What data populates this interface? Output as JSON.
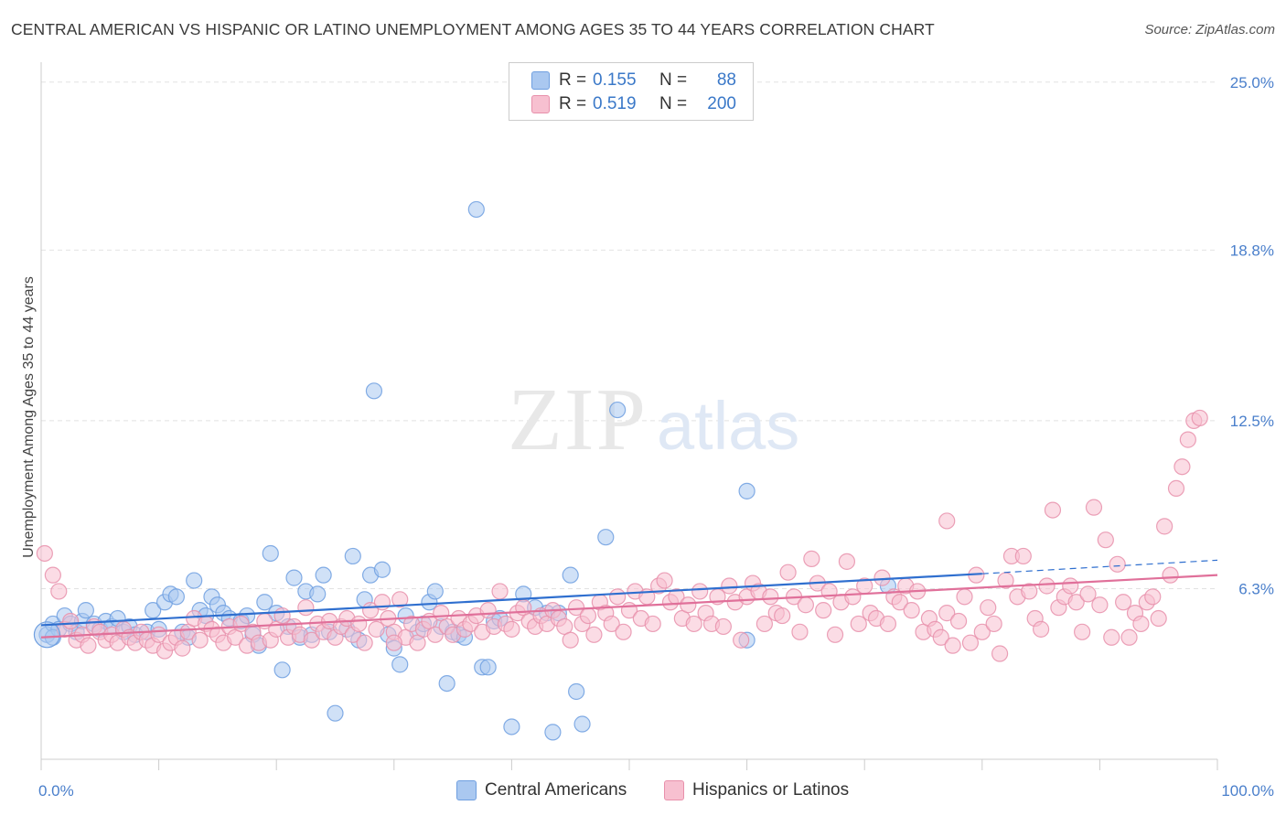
{
  "title": "CENTRAL AMERICAN VS HISPANIC OR LATINO UNEMPLOYMENT AMONG AGES 35 TO 44 YEARS CORRELATION CHART",
  "source": "Source: ZipAtlas.com",
  "watermark": {
    "zip": "ZIP",
    "atlas": "atlas"
  },
  "legend": {
    "rows": [
      {
        "r_label": "R =",
        "r_value": "0.155",
        "n_label": "N =",
        "n_value": "88",
        "color": "#aac8f0",
        "border": "#6f9fe0"
      },
      {
        "r_label": "R =",
        "r_value": "0.519",
        "n_label": "N =",
        "n_value": "200",
        "color": "#f7c0d0",
        "border": "#e890ab"
      }
    ]
  },
  "bottom_legend": [
    {
      "label": "Central Americans",
      "color": "#aac8f0",
      "border": "#6f9fe0"
    },
    {
      "label": "Hispanics or Latinos",
      "color": "#f7c0d0",
      "border": "#e890ab"
    }
  ],
  "chart_data": {
    "type": "scatter",
    "title": "CENTRAL AMERICAN VS HISPANIC OR LATINO UNEMPLOYMENT AMONG AGES 35 TO 44 YEARS CORRELATION CHART",
    "xlabel": "",
    "ylabel": "Unemployment Among Ages 35 to 44 years",
    "xlim": [
      0,
      100
    ],
    "ylim": [
      0,
      25.6
    ],
    "y_ticks": [
      {
        "value": 6.3,
        "label": "6.3%"
      },
      {
        "value": 12.5,
        "label": "12.5%"
      },
      {
        "value": 18.8,
        "label": "18.8%"
      },
      {
        "value": 25.0,
        "label": "25.0%"
      }
    ],
    "x_tick_labels": [
      {
        "value": 0,
        "label": "0.0%"
      },
      {
        "value": 100,
        "label": "100.0%"
      }
    ],
    "grid": true,
    "legend_position": "top-center",
    "series": [
      {
        "name": "Central Americans",
        "color": "#6f9fe0",
        "fill": "#aac8f0",
        "r": 0.155,
        "n": 88,
        "trend": {
          "x0": 0,
          "y0": 4.95,
          "x1": 80,
          "y1": 6.85,
          "dashed_to": 100,
          "dashed_y": 7.35
        },
        "points": [
          [
            0.5,
            4.6
          ],
          [
            1,
            5.0
          ],
          [
            1.5,
            4.8
          ],
          [
            2,
            5.3
          ],
          [
            2.5,
            5.0
          ],
          [
            3,
            4.7
          ],
          [
            3.5,
            5.1
          ],
          [
            3.8,
            5.5
          ],
          [
            4.5,
            5.0
          ],
          [
            5,
            4.8
          ],
          [
            5.5,
            5.1
          ],
          [
            6,
            4.9
          ],
          [
            6.5,
            5.2
          ],
          [
            7,
            4.7
          ],
          [
            7.5,
            4.9
          ],
          [
            8,
            4.6
          ],
          [
            9,
            4.7
          ],
          [
            9.5,
            5.5
          ],
          [
            10,
            4.8
          ],
          [
            10.5,
            5.8
          ],
          [
            11,
            6.1
          ],
          [
            11.5,
            6.0
          ],
          [
            12,
            4.7
          ],
          [
            12.5,
            4.5
          ],
          [
            13,
            6.6
          ],
          [
            13.5,
            5.5
          ],
          [
            14,
            5.3
          ],
          [
            14.5,
            6.0
          ],
          [
            15,
            5.7
          ],
          [
            15.5,
            5.4
          ],
          [
            16,
            5.2
          ],
          [
            17,
            5.1
          ],
          [
            17.5,
            5.3
          ],
          [
            18,
            4.6
          ],
          [
            18.5,
            4.2
          ],
          [
            19,
            5.8
          ],
          [
            19.5,
            7.6
          ],
          [
            20,
            5.4
          ],
          [
            20.5,
            3.3
          ],
          [
            21,
            4.9
          ],
          [
            21.5,
            6.7
          ],
          [
            22,
            4.5
          ],
          [
            22.5,
            6.2
          ],
          [
            23,
            4.6
          ],
          [
            23.5,
            6.1
          ],
          [
            24,
            6.8
          ],
          [
            24.5,
            4.7
          ],
          [
            25,
            1.7
          ],
          [
            26,
            4.8
          ],
          [
            26.5,
            7.5
          ],
          [
            27,
            4.4
          ],
          [
            27.5,
            5.9
          ],
          [
            28,
            6.8
          ],
          [
            28.3,
            13.6
          ],
          [
            29,
            7.0
          ],
          [
            29.5,
            4.6
          ],
          [
            30,
            4.1
          ],
          [
            30.5,
            3.5
          ],
          [
            31,
            5.3
          ],
          [
            32,
            4.7
          ],
          [
            32.5,
            5.0
          ],
          [
            33,
            5.8
          ],
          [
            33.5,
            6.2
          ],
          [
            34,
            4.9
          ],
          [
            34.5,
            2.8
          ],
          [
            35,
            4.7
          ],
          [
            35.5,
            4.6
          ],
          [
            36,
            4.5
          ],
          [
            37,
            20.3
          ],
          [
            37.5,
            3.4
          ],
          [
            38,
            3.4
          ],
          [
            38.5,
            5.1
          ],
          [
            39,
            5.2
          ],
          [
            40,
            1.2
          ],
          [
            41,
            6.1
          ],
          [
            42,
            5.6
          ],
          [
            43,
            5.4
          ],
          [
            43.5,
            1.0
          ],
          [
            44,
            5.4
          ],
          [
            45,
            6.8
          ],
          [
            45.5,
            2.5
          ],
          [
            46,
            1.3
          ],
          [
            48,
            8.2
          ],
          [
            49,
            12.9
          ],
          [
            60,
            4.4
          ],
          [
            60,
            9.9
          ],
          [
            72,
            6.4
          ],
          [
            1,
            4.5
          ]
        ]
      },
      {
        "name": "Hispanics or Latinos",
        "color": "#e890ab",
        "fill": "#f7c0d0",
        "r": 0.519,
        "n": 200,
        "trend": {
          "x0": 0,
          "y0": 4.5,
          "x1": 100,
          "y1": 6.8
        },
        "points": [
          [
            0.3,
            7.6
          ],
          [
            1,
            6.8
          ],
          [
            1.5,
            6.2
          ],
          [
            2,
            4.8
          ],
          [
            2.5,
            5.1
          ],
          [
            3,
            4.4
          ],
          [
            3.5,
            4.6
          ],
          [
            4,
            4.2
          ],
          [
            4.5,
            4.9
          ],
          [
            5,
            4.7
          ],
          [
            5.5,
            4.4
          ],
          [
            6,
            4.6
          ],
          [
            6.5,
            4.3
          ],
          [
            7,
            4.8
          ],
          [
            7.5,
            4.5
          ],
          [
            8,
            4.3
          ],
          [
            8.5,
            4.7
          ],
          [
            9,
            4.4
          ],
          [
            9.5,
            4.2
          ],
          [
            10,
            4.6
          ],
          [
            10.5,
            4.0
          ],
          [
            11,
            4.3
          ],
          [
            11.5,
            4.5
          ],
          [
            12,
            4.1
          ],
          [
            12.5,
            4.7
          ],
          [
            13,
            5.2
          ],
          [
            13.5,
            4.4
          ],
          [
            14,
            5.0
          ],
          [
            14.5,
            4.8
          ],
          [
            15,
            4.6
          ],
          [
            15.5,
            4.3
          ],
          [
            16,
            4.9
          ],
          [
            16.5,
            4.5
          ],
          [
            17,
            5.0
          ],
          [
            17.5,
            4.2
          ],
          [
            18,
            4.7
          ],
          [
            18.5,
            4.3
          ],
          [
            19,
            5.1
          ],
          [
            19.5,
            4.4
          ],
          [
            20,
            4.8
          ],
          [
            20.5,
            5.3
          ],
          [
            21,
            4.5
          ],
          [
            21.5,
            4.9
          ],
          [
            22,
            4.6
          ],
          [
            22.5,
            5.6
          ],
          [
            23,
            4.4
          ],
          [
            23.5,
            5.0
          ],
          [
            24,
            4.7
          ],
          [
            24.5,
            5.1
          ],
          [
            25,
            4.5
          ],
          [
            25.5,
            4.9
          ],
          [
            26,
            5.2
          ],
          [
            26.5,
            4.6
          ],
          [
            27,
            5.0
          ],
          [
            27.5,
            4.3
          ],
          [
            28,
            5.5
          ],
          [
            28.5,
            4.8
          ],
          [
            29,
            5.8
          ],
          [
            29.5,
            5.2
          ],
          [
            30,
            4.7
          ],
          [
            30.5,
            5.9
          ],
          [
            31,
            4.5
          ],
          [
            31.5,
            5.0
          ],
          [
            32,
            4.3
          ],
          [
            32.5,
            4.8
          ],
          [
            33,
            5.1
          ],
          [
            33.5,
            4.6
          ],
          [
            34,
            5.4
          ],
          [
            34.5,
            4.9
          ],
          [
            35,
            4.6
          ],
          [
            35.5,
            5.2
          ],
          [
            36,
            4.8
          ],
          [
            36.5,
            5.0
          ],
          [
            37,
            5.3
          ],
          [
            37.5,
            4.7
          ],
          [
            38,
            5.5
          ],
          [
            38.5,
            4.9
          ],
          [
            39,
            6.2
          ],
          [
            39.5,
            5.0
          ],
          [
            40,
            4.8
          ],
          [
            40.5,
            5.4
          ],
          [
            41,
            5.6
          ],
          [
            41.5,
            5.1
          ],
          [
            42,
            4.9
          ],
          [
            42.5,
            5.3
          ],
          [
            43,
            5.0
          ],
          [
            43.5,
            5.5
          ],
          [
            44,
            5.2
          ],
          [
            44.5,
            4.9
          ],
          [
            45,
            4.4
          ],
          [
            45.5,
            5.6
          ],
          [
            46,
            5.0
          ],
          [
            46.5,
            5.3
          ],
          [
            47,
            4.6
          ],
          [
            47.5,
            5.8
          ],
          [
            48,
            5.4
          ],
          [
            48.5,
            5.0
          ],
          [
            49,
            6.0
          ],
          [
            49.5,
            4.7
          ],
          [
            50,
            5.5
          ],
          [
            50.5,
            6.2
          ],
          [
            51,
            5.2
          ],
          [
            51.5,
            6.0
          ],
          [
            52,
            5.0
          ],
          [
            52.5,
            6.4
          ],
          [
            53,
            6.6
          ],
          [
            53.5,
            5.8
          ],
          [
            54,
            6.0
          ],
          [
            54.5,
            5.2
          ],
          [
            55,
            5.7
          ],
          [
            55.5,
            5.0
          ],
          [
            56,
            6.2
          ],
          [
            56.5,
            5.4
          ],
          [
            57,
            5.0
          ],
          [
            57.5,
            6.0
          ],
          [
            58,
            4.9
          ],
          [
            58.5,
            6.4
          ],
          [
            59,
            5.8
          ],
          [
            59.5,
            4.4
          ],
          [
            60,
            6.0
          ],
          [
            60.5,
            6.5
          ],
          [
            61,
            6.2
          ],
          [
            61.5,
            5.0
          ],
          [
            62,
            6.0
          ],
          [
            62.5,
            5.4
          ],
          [
            63,
            5.3
          ],
          [
            63.5,
            6.9
          ],
          [
            64,
            6.0
          ],
          [
            64.5,
            4.7
          ],
          [
            65,
            5.7
          ],
          [
            65.5,
            7.4
          ],
          [
            66,
            6.5
          ],
          [
            66.5,
            5.5
          ],
          [
            67,
            6.2
          ],
          [
            67.5,
            4.6
          ],
          [
            68,
            5.8
          ],
          [
            68.5,
            7.3
          ],
          [
            69,
            6.0
          ],
          [
            69.5,
            5.0
          ],
          [
            70,
            6.4
          ],
          [
            70.5,
            5.4
          ],
          [
            71,
            5.2
          ],
          [
            71.5,
            6.7
          ],
          [
            72,
            5.0
          ],
          [
            72.5,
            6.0
          ],
          [
            73,
            5.8
          ],
          [
            73.5,
            6.4
          ],
          [
            74,
            5.5
          ],
          [
            74.5,
            6.2
          ],
          [
            75,
            4.7
          ],
          [
            75.5,
            5.2
          ],
          [
            76,
            4.8
          ],
          [
            76.5,
            4.5
          ],
          [
            77,
            5.4
          ],
          [
            77.5,
            4.2
          ],
          [
            78,
            5.1
          ],
          [
            78.5,
            6.0
          ],
          [
            79,
            4.3
          ],
          [
            79.5,
            6.8
          ],
          [
            80,
            4.7
          ],
          [
            80.5,
            5.6
          ],
          [
            81,
            5.0
          ],
          [
            81.5,
            3.9
          ],
          [
            82,
            6.6
          ],
          [
            82.5,
            7.5
          ],
          [
            83,
            6.0
          ],
          [
            83.5,
            7.5
          ],
          [
            84,
            6.2
          ],
          [
            84.5,
            5.2
          ],
          [
            85,
            4.8
          ],
          [
            85.5,
            6.4
          ],
          [
            86,
            9.2
          ],
          [
            86.5,
            5.6
          ],
          [
            87,
            6.0
          ],
          [
            87.5,
            6.4
          ],
          [
            88,
            5.8
          ],
          [
            88.5,
            4.7
          ],
          [
            89,
            6.1
          ],
          [
            89.5,
            9.3
          ],
          [
            90,
            5.7
          ],
          [
            90.5,
            8.1
          ],
          [
            91,
            4.5
          ],
          [
            91.5,
            7.2
          ],
          [
            92,
            5.8
          ],
          [
            92.5,
            4.5
          ],
          [
            93,
            5.4
          ],
          [
            93.5,
            5.0
          ],
          [
            94,
            5.8
          ],
          [
            94.5,
            6.0
          ],
          [
            95,
            5.2
          ],
          [
            95.5,
            8.6
          ],
          [
            96,
            6.8
          ],
          [
            96.5,
            10.0
          ],
          [
            97,
            10.8
          ],
          [
            97.5,
            11.8
          ],
          [
            98,
            12.5
          ],
          [
            98.5,
            12.6
          ],
          [
            77,
            8.8
          ],
          [
            30,
            4.3
          ]
        ]
      }
    ]
  }
}
